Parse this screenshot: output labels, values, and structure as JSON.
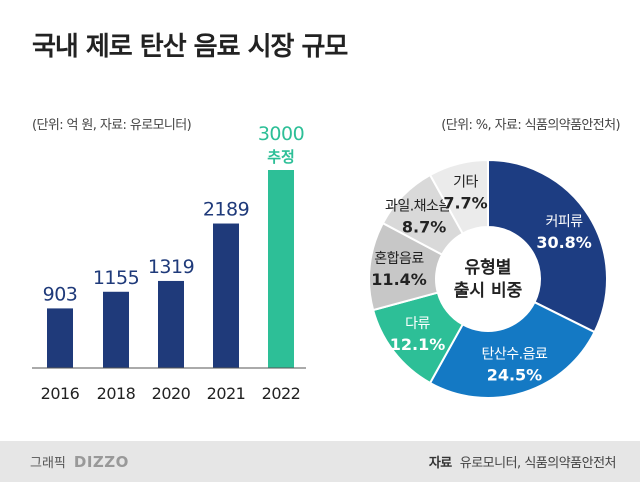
{
  "title": "국내 제로 탄산 음료 시장 규모",
  "credit": {
    "label": "그래픽",
    "logo": "DIZZO"
  },
  "source": {
    "label": "자료",
    "text": "유로모니터, 식품의약품안전처"
  },
  "colors": {
    "bar": "#1f3a7a",
    "estimate": "#2dbf97",
    "footer": "#e6e6e6"
  },
  "chart_data": [
    {
      "type": "bar",
      "unit_note": "(단위: 억 원, 자료: 유로모니터)",
      "categories": [
        "2016",
        "2018",
        "2020",
        "2021",
        "2022"
      ],
      "values": [
        903,
        1155,
        1319,
        2189,
        3000
      ],
      "value_labels": [
        "903",
        "1155",
        "1319",
        "2189",
        "3000"
      ],
      "estimate_index": 4,
      "estimate_label": "추정",
      "ylim": [
        0,
        3000
      ],
      "grid": false
    },
    {
      "type": "pie",
      "unit_note": "(단위: %, 자료: 식품의약품안전처)",
      "center_label": [
        "유형별",
        "출시 비중"
      ],
      "slices": [
        {
          "name": "커피류",
          "value": 30.8,
          "color": "#1d3d82"
        },
        {
          "name": "탄산수.음료",
          "value": 24.5,
          "color": "#1479c4"
        },
        {
          "name": "다류",
          "value": 12.1,
          "color": "#2dbf97"
        },
        {
          "name": "혼합음료",
          "value": 11.4,
          "color": "#c7c7c7"
        },
        {
          "name": "과일.채소음료",
          "value": 8.7,
          "color": "#d9d9d9"
        },
        {
          "name": "기타",
          "value": 7.7,
          "color": "#ebebeb"
        }
      ]
    }
  ]
}
